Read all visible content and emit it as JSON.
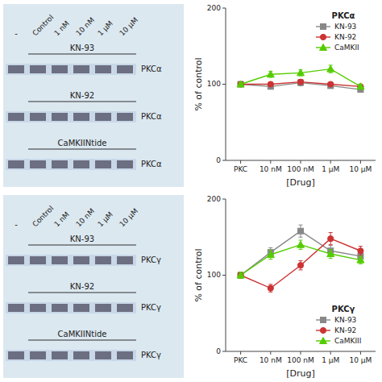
{
  "chart_data": [
    {
      "type": "gel",
      "categories": [
        "-",
        "Control",
        "1 nM",
        "10 nM",
        "1 μM",
        "10 μM"
      ],
      "series": [
        {
          "name": "KN-93"
        },
        {
          "name": "KN-92"
        },
        {
          "name": "CaMKIINtide"
        }
      ],
      "annotations": [
        "PKCα",
        "PKCα",
        "PKCα"
      ]
    },
    {
      "type": "line",
      "title": "PKCα",
      "legend": "upper right",
      "categories": [
        "PKC",
        "10 nM",
        "100 nM",
        "1 μM",
        "10 μM"
      ],
      "x_label": "[Drug]",
      "y_label": "% of control",
      "ylim": [
        0,
        200
      ],
      "yticks": [
        0,
        100,
        200
      ],
      "grid": false,
      "series": [
        {
          "name": "KN-93",
          "color": "#888888",
          "marker": "square",
          "values": [
            100,
            97,
            102,
            98,
            93
          ],
          "errors": [
            2,
            3,
            4,
            3,
            2
          ]
        },
        {
          "name": "KN-92",
          "color": "#cc3333",
          "marker": "circle",
          "values": [
            100,
            100,
            103,
            100,
            97
          ],
          "errors": [
            2,
            3,
            3,
            2,
            2
          ]
        },
        {
          "name": "CaMKII",
          "color": "#55cc00",
          "marker": "triangle",
          "values": [
            100,
            113,
            115,
            120,
            97
          ],
          "errors": [
            2,
            4,
            4,
            5,
            3
          ]
        }
      ]
    },
    {
      "type": "gel",
      "categories": [
        "-",
        "Control",
        "1 nM",
        "10 nM",
        "1 μM",
        "10 μM"
      ],
      "series": [
        {
          "name": "KN-93"
        },
        {
          "name": "KN-92"
        },
        {
          "name": "CaMKIINtide"
        }
      ],
      "annotations": [
        "PKCγ",
        "PKCγ",
        "PKCγ"
      ]
    },
    {
      "type": "line",
      "title": "PKCγ",
      "legend": "lower right",
      "categories": [
        "PKC",
        "10 nM",
        "100 nM",
        "1 μM",
        "10 μM"
      ],
      "x_label": "[Drug]",
      "y_label": "% of control",
      "ylim": [
        0,
        200
      ],
      "yticks": [
        0,
        100,
        200
      ],
      "grid": false,
      "series": [
        {
          "name": "KN-93",
          "color": "#888888",
          "marker": "square",
          "values": [
            100,
            130,
            158,
            132,
            125
          ],
          "errors": [
            4,
            6,
            8,
            7,
            5
          ]
        },
        {
          "name": "KN-92",
          "color": "#cc3333",
          "marker": "circle",
          "values": [
            100,
            83,
            113,
            148,
            132
          ],
          "errors": [
            4,
            5,
            6,
            8,
            6
          ]
        },
        {
          "name": "CaMKIII",
          "color": "#55cc00",
          "marker": "triangle",
          "values": [
            100,
            127,
            140,
            128,
            120
          ],
          "errors": [
            4,
            6,
            6,
            6,
            5
          ]
        }
      ]
    }
  ]
}
